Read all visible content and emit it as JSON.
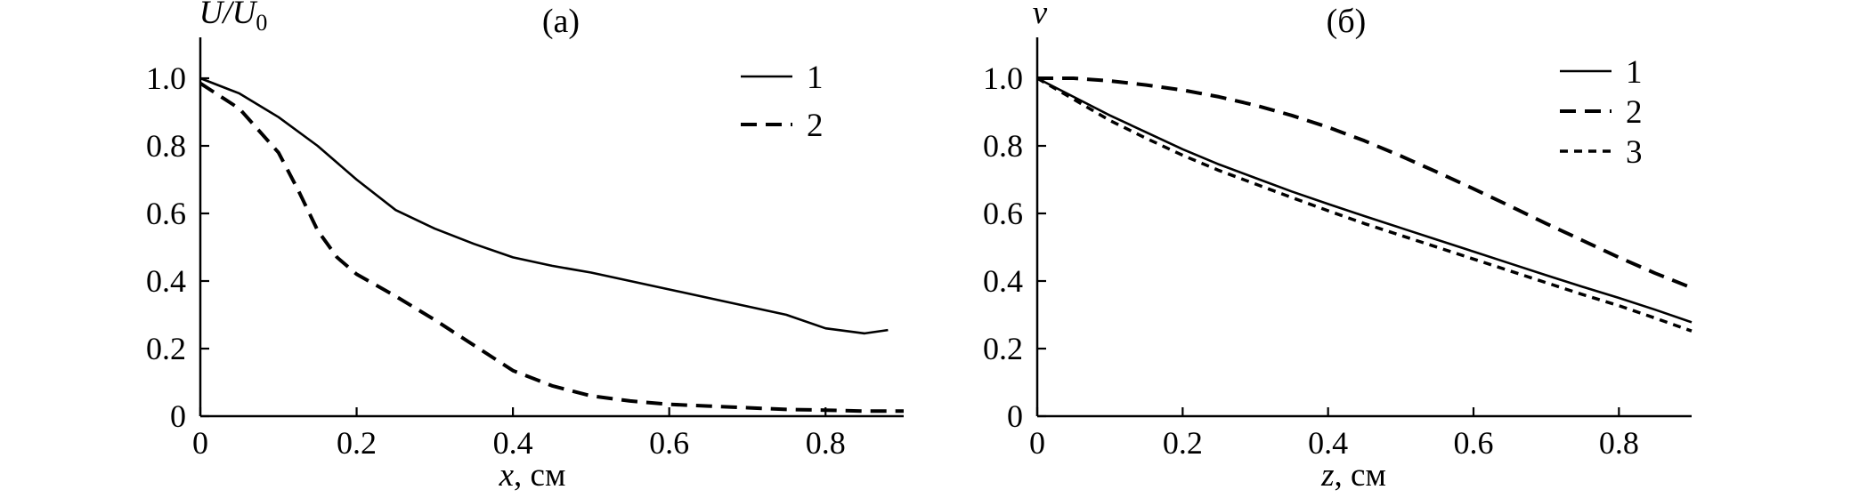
{
  "figure_title": "",
  "chart_data": [
    {
      "type": "line",
      "panel_label": "(а)",
      "ylabel_parts": {
        "text": "U/U",
        "sub": "0"
      },
      "xlabel_parts": {
        "var": "x",
        "rest": ", см"
      },
      "xlim": [
        0,
        0.9
      ],
      "ylim": [
        0,
        1.12
      ],
      "xticks": {
        "values": [
          0,
          0.2,
          0.4,
          0.6,
          0.8
        ],
        "labels": [
          "0",
          "0.2",
          "0.4",
          "0.6",
          "0.8"
        ]
      },
      "yticks": {
        "values": [
          0,
          0.2,
          0.4,
          0.6,
          0.8,
          1.0
        ],
        "labels": [
          "0",
          "0.2",
          "0.4",
          "0.6",
          "0.8",
          "1.0"
        ]
      },
      "grid": false,
      "legend_position": "upper-right",
      "line_color": "#000000",
      "series": [
        {
          "name": "1",
          "line_style": "solid",
          "x": [
            0,
            0.05,
            0.1,
            0.15,
            0.2,
            0.25,
            0.3,
            0.35,
            0.4,
            0.45,
            0.5,
            0.55,
            0.6,
            0.65,
            0.7,
            0.75,
            0.8,
            0.85,
            0.88
          ],
          "y": [
            1.0,
            0.955,
            0.885,
            0.8,
            0.7,
            0.61,
            0.555,
            0.51,
            0.47,
            0.445,
            0.425,
            0.4,
            0.375,
            0.35,
            0.325,
            0.3,
            0.26,
            0.245,
            0.255
          ]
        },
        {
          "name": "2",
          "line_style": "dashed",
          "x": [
            0,
            0.05,
            0.1,
            0.125,
            0.15,
            0.175,
            0.2,
            0.25,
            0.3,
            0.35,
            0.4,
            0.45,
            0.5,
            0.55,
            0.6,
            0.65,
            0.7,
            0.75,
            0.8,
            0.85,
            0.9
          ],
          "y": [
            0.985,
            0.91,
            0.78,
            0.67,
            0.55,
            0.47,
            0.42,
            0.355,
            0.285,
            0.21,
            0.135,
            0.09,
            0.06,
            0.045,
            0.035,
            0.03,
            0.025,
            0.02,
            0.018,
            0.015,
            0.015
          ]
        }
      ]
    },
    {
      "type": "line",
      "panel_label": "(б)",
      "ylabel_parts": {
        "text": "v",
        "sub": ""
      },
      "xlabel_parts": {
        "var": "z",
        "rest": ", см"
      },
      "xlim": [
        0,
        0.9
      ],
      "ylim": [
        0,
        1.12
      ],
      "xticks": {
        "values": [
          0,
          0.2,
          0.4,
          0.6,
          0.8
        ],
        "labels": [
          "0",
          "0.2",
          "0.4",
          "0.6",
          "0.8"
        ]
      },
      "yticks": {
        "values": [
          0,
          0.2,
          0.4,
          0.6,
          0.8,
          1.0
        ],
        "labels": [
          "0",
          "0.2",
          "0.4",
          "0.6",
          "0.8",
          "1.0"
        ]
      },
      "grid": false,
      "legend_position": "upper-right",
      "line_color": "#000000",
      "series": [
        {
          "name": "1",
          "line_style": "solid",
          "x": [
            0,
            0.05,
            0.1,
            0.15,
            0.2,
            0.25,
            0.3,
            0.35,
            0.4,
            0.45,
            0.5,
            0.55,
            0.6,
            0.65,
            0.7,
            0.75,
            0.8,
            0.85,
            0.9
          ],
          "y": [
            1.0,
            0.945,
            0.89,
            0.84,
            0.79,
            0.745,
            0.705,
            0.665,
            0.628,
            0.592,
            0.557,
            0.522,
            0.487,
            0.452,
            0.417,
            0.383,
            0.35,
            0.315,
            0.278
          ]
        },
        {
          "name": "2",
          "line_style": "dashed",
          "x": [
            0,
            0.05,
            0.1,
            0.15,
            0.2,
            0.25,
            0.3,
            0.35,
            0.4,
            0.45,
            0.5,
            0.55,
            0.6,
            0.65,
            0.7,
            0.75,
            0.8,
            0.85,
            0.9
          ],
          "y": [
            1.0,
            1.0,
            0.992,
            0.98,
            0.965,
            0.945,
            0.92,
            0.89,
            0.855,
            0.815,
            0.77,
            0.722,
            0.673,
            0.622,
            0.57,
            0.52,
            0.47,
            0.423,
            0.38
          ]
        },
        {
          "name": "3",
          "line_style": "short-dashed",
          "x": [
            0,
            0.05,
            0.1,
            0.15,
            0.2,
            0.25,
            0.3,
            0.35,
            0.4,
            0.45,
            0.5,
            0.55,
            0.6,
            0.65,
            0.7,
            0.75,
            0.8,
            0.85,
            0.9
          ],
          "y": [
            1.0,
            0.938,
            0.875,
            0.822,
            0.772,
            0.727,
            0.687,
            0.647,
            0.608,
            0.57,
            0.535,
            0.5,
            0.465,
            0.43,
            0.395,
            0.36,
            0.327,
            0.29,
            0.252
          ]
        }
      ]
    }
  ]
}
